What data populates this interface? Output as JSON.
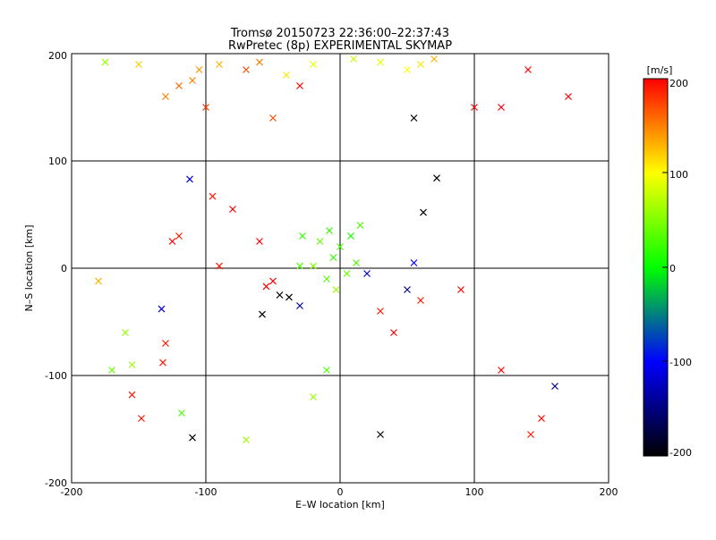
{
  "chart_data": {
    "type": "scatter",
    "title_line1": "Tromsø 20150723 22:36:00–22:37:43",
    "title_line2": "RwPretec (8p) EXPERIMENTAL SKYMAP",
    "xlabel": "E–W location [km]",
    "ylabel": "N–S location [km]",
    "xlim": [
      -200,
      200
    ],
    "ylim": [
      -200,
      200
    ],
    "xticks": [
      "-200",
      "-100",
      "0",
      "100",
      "200"
    ],
    "yticks": [
      "-200",
      "-100",
      "0",
      "100",
      "200"
    ],
    "grid": true,
    "colorbar": {
      "label": "[m/s]",
      "range": [
        -200,
        200
      ],
      "ticks": [
        "200",
        "100",
        "0",
        "-100",
        "-200"
      ]
    },
    "series": [
      {
        "marker": "x",
        "points": [
          [
            -120,
            170,
            160
          ],
          [
            -110,
            175,
            150
          ],
          [
            -105,
            185,
            140
          ],
          [
            -90,
            190,
            130
          ],
          [
            -70,
            185,
            170
          ],
          [
            -60,
            192,
            150
          ],
          [
            -40,
            180,
            110
          ],
          [
            -20,
            190,
            90
          ],
          [
            10,
            195,
            80
          ],
          [
            30,
            192,
            90
          ],
          [
            50,
            185,
            100
          ],
          [
            60,
            190,
            110
          ],
          [
            70,
            195,
            130
          ],
          [
            -150,
            190,
            120
          ],
          [
            -175,
            192,
            60
          ],
          [
            -130,
            160,
            150
          ],
          [
            -100,
            150,
            180
          ],
          [
            -50,
            140,
            170
          ],
          [
            -30,
            170,
            200
          ],
          [
            55,
            140,
            -200
          ],
          [
            72,
            84,
            -200
          ],
          [
            62,
            52,
            -200
          ],
          [
            -112,
            83,
            -110
          ],
          [
            -95,
            67,
            190
          ],
          [
            -80,
            55,
            200
          ],
          [
            -120,
            30,
            190
          ],
          [
            -125,
            25,
            200
          ],
          [
            -60,
            25,
            200
          ],
          [
            -90,
            2,
            190
          ],
          [
            -180,
            -12,
            130
          ],
          [
            -45,
            -25,
            -200
          ],
          [
            -38,
            -27,
            -200
          ],
          [
            -58,
            -43,
            -200
          ],
          [
            -30,
            -35,
            -140
          ],
          [
            -133,
            -38,
            -120
          ],
          [
            -130,
            -70,
            190
          ],
          [
            -160,
            -60,
            60
          ],
          [
            -155,
            -90,
            60
          ],
          [
            -170,
            -95,
            40
          ],
          [
            -132,
            -88,
            190
          ],
          [
            -155,
            -118,
            190
          ],
          [
            -148,
            -140,
            190
          ],
          [
            -118,
            -135,
            30
          ],
          [
            -110,
            -158,
            -200
          ],
          [
            -70,
            -160,
            60
          ],
          [
            -20,
            -120,
            60
          ],
          [
            -10,
            -95,
            30
          ],
          [
            30,
            -155,
            -200
          ],
          [
            50,
            -20,
            -150
          ],
          [
            55,
            5,
            -100
          ],
          [
            20,
            -5,
            -120
          ],
          [
            90,
            -20,
            200
          ],
          [
            160,
            -110,
            -150
          ],
          [
            142,
            -155,
            190
          ],
          [
            120,
            -95,
            200
          ],
          [
            150,
            -140,
            200
          ],
          [
            100,
            150,
            200
          ],
          [
            120,
            150,
            200
          ],
          [
            170,
            160,
            200
          ],
          [
            140,
            185,
            200
          ],
          [
            0,
            20,
            30
          ],
          [
            -5,
            10,
            20
          ],
          [
            5,
            -5,
            40
          ],
          [
            -10,
            -10,
            30
          ],
          [
            8,
            30,
            10
          ],
          [
            -15,
            25,
            40
          ],
          [
            12,
            5,
            30
          ],
          [
            -20,
            2,
            50
          ],
          [
            -30,
            2,
            30
          ],
          [
            -3,
            -20,
            60
          ],
          [
            -28,
            30,
            20
          ],
          [
            -50,
            -12,
            200
          ],
          [
            -55,
            -17,
            200
          ],
          [
            15,
            40,
            30
          ],
          [
            -8,
            35,
            20
          ],
          [
            30,
            -40,
            190
          ],
          [
            40,
            -60,
            200
          ],
          [
            60,
            -30,
            190
          ]
        ]
      }
    ]
  }
}
